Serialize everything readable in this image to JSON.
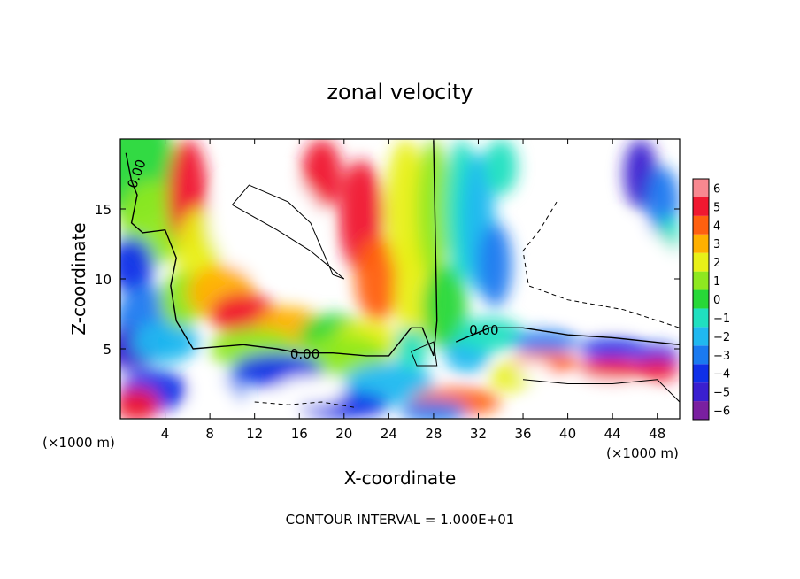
{
  "chart_data": {
    "type": "heatmap",
    "title": "zonal velocity",
    "xlabel": "X-coordinate",
    "ylabel": "Z-coordinate",
    "x_unit": "(×1000 m)",
    "footer": "CONTOUR INTERVAL = 1.000E+01",
    "xlim": [
      0,
      50
    ],
    "ylim": [
      0,
      20
    ],
    "x_ticks": [
      4,
      8,
      12,
      16,
      20,
      24,
      28,
      32,
      36,
      40,
      44,
      48
    ],
    "x_tick_labels": [
      "4",
      "8",
      "12",
      "16",
      "20",
      "24",
      "28",
      "32",
      "36",
      "40",
      "44",
      "48"
    ],
    "y_ticks": [
      5,
      10,
      15
    ],
    "y_tick_labels": [
      "5",
      "10",
      "15"
    ],
    "colorbar": {
      "levels": [
        -6,
        -5,
        -4,
        -3,
        -2,
        -1,
        0,
        1,
        2,
        3,
        4,
        5,
        6
      ],
      "labels": [
        "−6",
        "−5",
        "−4",
        "−3",
        "−2",
        "−1",
        "0",
        "1",
        "2",
        "3",
        "4",
        "5",
        "6"
      ],
      "colors": [
        "#7a1fa0",
        "#3a1fd0",
        "#1030e8",
        "#1a7af0",
        "#20b8f0",
        "#20e0c0",
        "#28d838",
        "#8ee820",
        "#e8f018",
        "#ffb000",
        "#ff6010",
        "#f01830",
        "#f88890"
      ]
    },
    "contour_labels": [
      "0.00",
      "0.00",
      "0.00"
    ]
  }
}
